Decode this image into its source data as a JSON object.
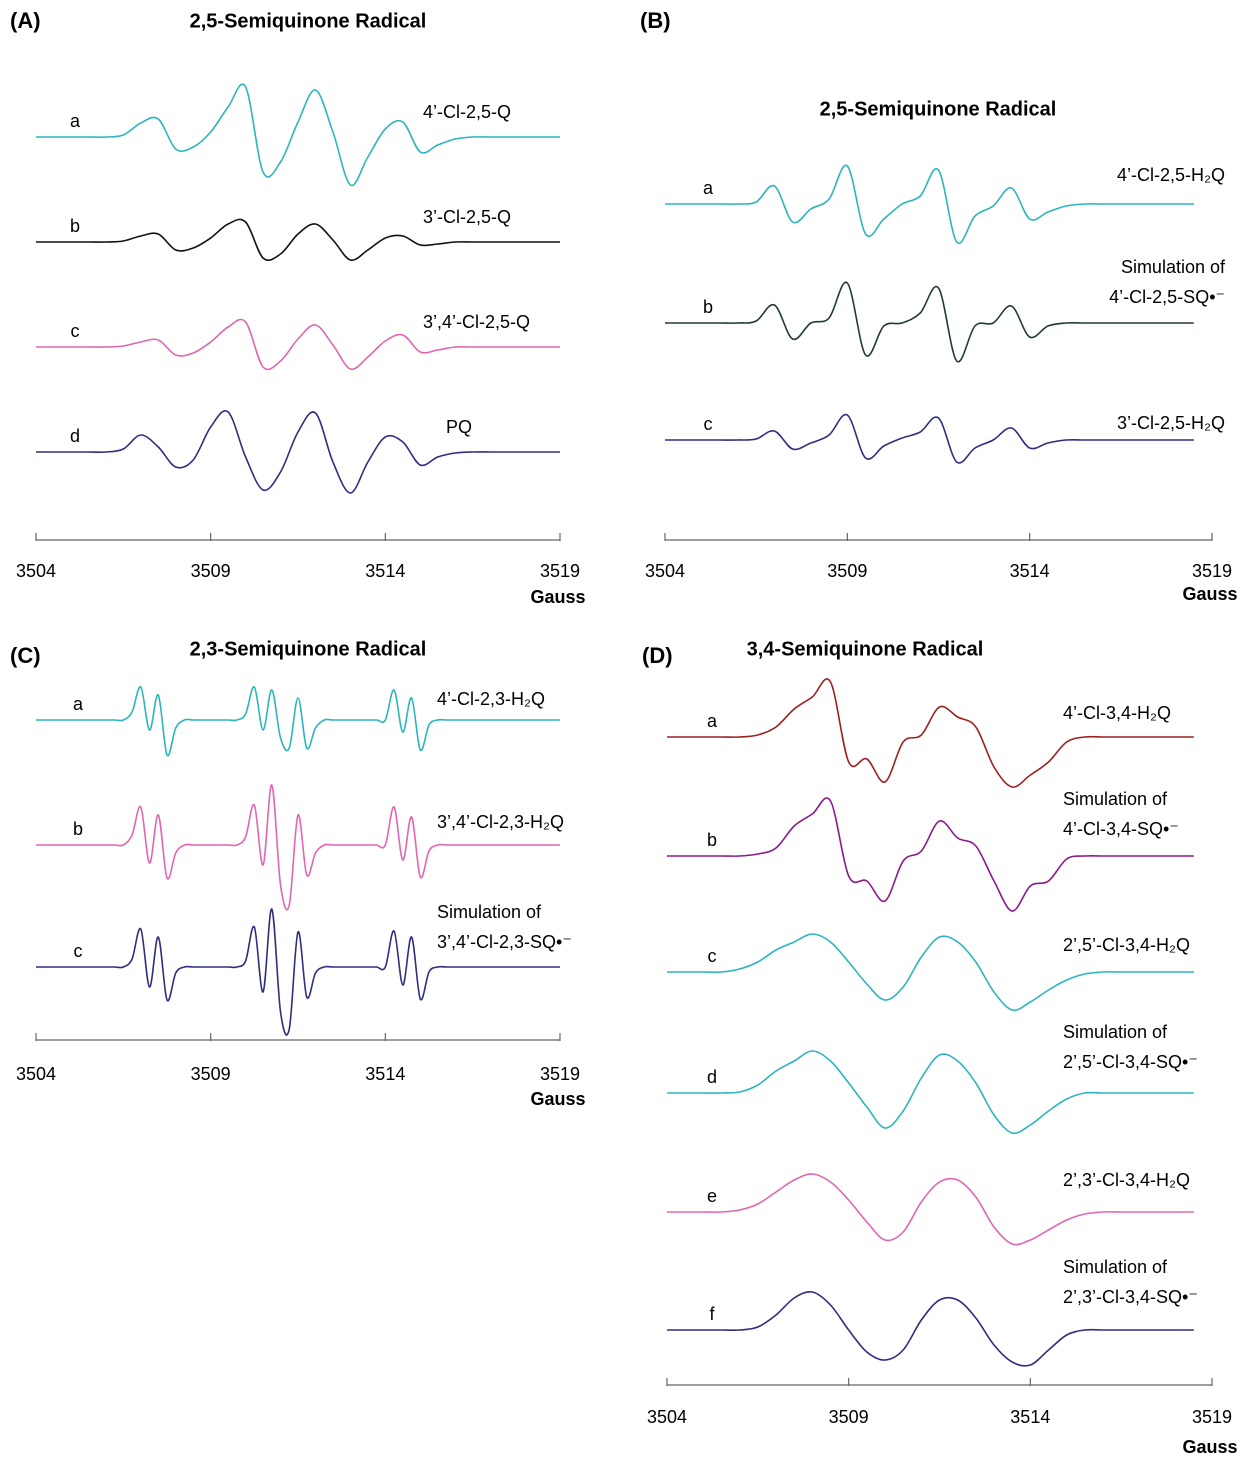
{
  "chart_data": [
    {
      "type": "line",
      "label": "(A)",
      "title": "2,5-Semiquinone Radical",
      "xlabel": "Gauss",
      "xlim": [
        3504,
        3519
      ],
      "xticks": [
        3504,
        3509,
        3514,
        3519
      ],
      "x": [
        3504,
        3504.5,
        3505,
        3505.5,
        3506,
        3506.5,
        3507,
        3507.5,
        3508,
        3508.5,
        3509,
        3509.5,
        3510,
        3510.5,
        3511,
        3511.5,
        3512,
        3512.5,
        3513,
        3513.5,
        3514,
        3514.5,
        3515,
        3515.5,
        3516,
        3516.5,
        3517,
        3517.5,
        3518,
        3518.5,
        3519
      ],
      "series": [
        {
          "tag": "a",
          "name": "4’-Cl-2,5-Q",
          "color": "#2bb5be",
          "values": [
            0,
            0,
            0,
            0,
            0,
            2,
            14,
            18,
            -12,
            -10,
            5,
            30,
            50,
            -35,
            -25,
            15,
            47,
            5,
            -48,
            -20,
            8,
            15,
            -15,
            -8,
            -2,
            0,
            0,
            0,
            0,
            0,
            0
          ]
        },
        {
          "tag": "b",
          "name": "3’-Cl-2,5-Q",
          "color": "#111111",
          "values": [
            0,
            0,
            0,
            0,
            0,
            1,
            6,
            8,
            -8,
            -6,
            4,
            18,
            20,
            -16,
            -12,
            8,
            18,
            2,
            -18,
            -8,
            4,
            6,
            -3,
            -2,
            0,
            0,
            0,
            0,
            0,
            0,
            0
          ]
        },
        {
          "tag": "c",
          "name": "3’,4’-Cl-2,5-Q",
          "color": "#e066b0",
          "values": [
            0,
            0,
            0,
            0,
            0,
            1,
            5,
            7,
            -8,
            -6,
            5,
            20,
            25,
            -20,
            -14,
            8,
            22,
            2,
            -22,
            -10,
            6,
            12,
            -5,
            -3,
            0,
            0,
            0,
            0,
            0,
            0,
            0
          ]
        },
        {
          "tag": "d",
          "name": "PQ",
          "color": "#2e2e80",
          "values": [
            0,
            0,
            0,
            0,
            0,
            3,
            17,
            5,
            -15,
            -8,
            25,
            40,
            -5,
            -38,
            -20,
            20,
            39,
            -10,
            -41,
            -10,
            15,
            10,
            -13,
            -5,
            -1,
            0,
            0,
            0,
            0,
            0,
            0
          ]
        }
      ]
    },
    {
      "type": "line",
      "label": "(B)",
      "title": "2,5-Semiquinone Radical",
      "xlabel": "Gauss",
      "xlim": [
        3504,
        3519
      ],
      "xticks": [
        3504,
        3509,
        3514,
        3519
      ],
      "x": [
        3504,
        3504.5,
        3505,
        3505.5,
        3506,
        3506.5,
        3507,
        3507.5,
        3508,
        3508.5,
        3509,
        3509.5,
        3510,
        3510.5,
        3511,
        3511.5,
        3512,
        3512.5,
        3513,
        3513.5,
        3514,
        3514.5,
        3515,
        3515.5,
        3516,
        3516.5,
        3517,
        3517.5,
        3518,
        3518.5
      ],
      "series": [
        {
          "tag": "a",
          "name": "4’-Cl-2,5-H₂Q",
          "color": "#2bb5be",
          "values": [
            0,
            0,
            0,
            0,
            0,
            2,
            18,
            -18,
            -5,
            5,
            38,
            -30,
            -15,
            0,
            8,
            34,
            -38,
            -12,
            -2,
            16,
            -15,
            -8,
            -2,
            0,
            0,
            0,
            0,
            0,
            0,
            0
          ]
        },
        {
          "tag": "b",
          "name": [
            "Simulation of",
            "4’-Cl-2,5-SQ•⁻"
          ],
          "color": "#1f3d2a",
          "values": [
            0,
            0,
            0,
            0,
            0,
            2,
            18,
            -16,
            0,
            5,
            40,
            -32,
            -3,
            0,
            10,
            35,
            -38,
            -3,
            0,
            17,
            -14,
            -3,
            0,
            0,
            0,
            0,
            0,
            0,
            0,
            0
          ]
        },
        {
          "tag": "c",
          "name": "3’-Cl-2,5-H₂Q",
          "color": "#2e2e80",
          "values": [
            0,
            0,
            0,
            0,
            0,
            1,
            9,
            -9,
            -3,
            5,
            25,
            -18,
            -6,
            2,
            8,
            22,
            -22,
            -8,
            0,
            12,
            -8,
            -3,
            0,
            0,
            0,
            0,
            0,
            0,
            0,
            0
          ]
        }
      ]
    },
    {
      "type": "line",
      "label": "(C)",
      "title": "2,3-Semiquinone Radical",
      "xlabel": "Gauss",
      "xlim": [
        3504,
        3519
      ],
      "xticks": [
        3504,
        3509,
        3514,
        3519
      ],
      "x": [
        3504,
        3504.25,
        3504.5,
        3504.75,
        3505,
        3505.25,
        3505.5,
        3505.75,
        3506,
        3506.25,
        3506.5,
        3506.75,
        3507,
        3507.25,
        3507.5,
        3507.75,
        3508,
        3508.25,
        3508.5,
        3508.75,
        3509,
        3509.25,
        3509.5,
        3509.75,
        3510,
        3510.25,
        3510.5,
        3510.75,
        3511,
        3511.25,
        3511.5,
        3511.75,
        3512,
        3512.25,
        3512.5,
        3512.75,
        3513,
        3513.25,
        3513.5,
        3513.75,
        3514,
        3514.25,
        3514.5,
        3514.75,
        3515,
        3515.25,
        3515.5,
        3515.75,
        3516,
        3516.25,
        3516.5,
        3516.75,
        3517,
        3517.25,
        3517.5,
        3517.75,
        3518,
        3518.25,
        3518.5,
        3518.75,
        3519
      ],
      "series": [
        {
          "tag": "a",
          "name": "4’-Cl-2,3-H₂Q",
          "color": "#2bb5be",
          "values": [
            0,
            0,
            0,
            0,
            0,
            0,
            0,
            0,
            0,
            0,
            0,
            8,
            33,
            -10,
            25,
            -35,
            -8,
            0,
            0,
            0,
            0,
            0,
            0,
            0,
            6,
            33,
            -10,
            30,
            -18,
            -28,
            22,
            -28,
            -8,
            0,
            0,
            0,
            0,
            0,
            0,
            0,
            0,
            30,
            -12,
            22,
            -30,
            -5,
            0,
            0,
            0,
            0,
            0,
            0,
            0,
            0,
            0,
            0,
            0,
            0,
            0,
            0,
            0
          ]
        },
        {
          "tag": "b",
          "name": "3’,4’-Cl-2,3-H₂Q",
          "color": "#e066b0",
          "values": [
            0,
            0,
            0,
            0,
            0,
            0,
            0,
            0,
            0,
            0,
            0,
            10,
            38,
            -18,
            30,
            -33,
            -8,
            0,
            0,
            0,
            0,
            0,
            0,
            0,
            8,
            40,
            -20,
            60,
            -40,
            -60,
            30,
            -30,
            -8,
            0,
            0,
            0,
            0,
            0,
            0,
            0,
            0,
            38,
            -15,
            28,
            -32,
            -6,
            0,
            0,
            0,
            0,
            0,
            0,
            0,
            0,
            0,
            0,
            0,
            0,
            0,
            0,
            0
          ]
        },
        {
          "tag": "c",
          "name": [
            "Simulation of",
            "3’,4’-Cl-2,3-SQ•⁻"
          ],
          "color": "#2e2e80",
          "values": [
            0,
            0,
            0,
            0,
            0,
            0,
            0,
            0,
            0,
            0,
            0,
            8,
            38,
            -20,
            30,
            -33,
            -6,
            0,
            0,
            0,
            0,
            0,
            0,
            0,
            6,
            40,
            -25,
            58,
            -45,
            -62,
            35,
            -30,
            -6,
            0,
            0,
            0,
            0,
            0,
            0,
            0,
            0,
            36,
            -18,
            30,
            -32,
            -5,
            0,
            0,
            0,
            0,
            0,
            0,
            0,
            0,
            0,
            0,
            0,
            0,
            0,
            0,
            0
          ]
        }
      ]
    },
    {
      "type": "line",
      "label": "(D)",
      "title": "3,4-Semiquinone Radical",
      "xlabel": "Gauss",
      "xlim": [
        3504,
        3519
      ],
      "xticks": [
        3504,
        3509,
        3514,
        3519
      ],
      "x": [
        3504,
        3504.5,
        3505,
        3505.5,
        3506,
        3506.5,
        3507,
        3507.5,
        3508,
        3508.5,
        3509,
        3509.5,
        3510,
        3510.5,
        3511,
        3511.5,
        3512,
        3512.5,
        3513,
        3513.5,
        3514,
        3514.5,
        3515,
        3515.5,
        3516,
        3516.5,
        3517,
        3517.5,
        3518,
        3518.5
      ],
      "series": [
        {
          "tag": "a",
          "name": "4’-Cl-3,4-H₂Q",
          "color": "#9b2020",
          "values": [
            0,
            0,
            0,
            0,
            0,
            2,
            10,
            28,
            40,
            55,
            -25,
            -22,
            -45,
            -5,
            2,
            30,
            20,
            10,
            -30,
            -50,
            -38,
            -25,
            -5,
            0,
            0,
            0,
            0,
            0,
            0,
            0
          ]
        },
        {
          "tag": "b",
          "name": [
            "Simulation of",
            "4’-Cl-3,4-SQ•⁻"
          ],
          "color": "#8b1a8b",
          "values": [
            0,
            0,
            0,
            0,
            0,
            2,
            8,
            30,
            42,
            55,
            -20,
            -25,
            -45,
            -5,
            5,
            35,
            18,
            10,
            -25,
            -55,
            -30,
            -25,
            -3,
            0,
            0,
            0,
            0,
            0,
            0,
            0
          ]
        },
        {
          "tag": "c",
          "name": "2’,5’-Cl-3,4-H₂Q",
          "color": "#2bb5be",
          "values": [
            0,
            0,
            0,
            0,
            3,
            10,
            22,
            30,
            38,
            30,
            10,
            -12,
            -28,
            -15,
            15,
            35,
            30,
            10,
            -20,
            -38,
            -30,
            -18,
            -8,
            -2,
            0,
            0,
            0,
            0,
            0,
            0
          ]
        },
        {
          "tag": "d",
          "name": [
            "Simulation of",
            "2’,5’-Cl-3,4-SQ•⁻"
          ],
          "color": "#2bb5be",
          "values": [
            0,
            0,
            0,
            0,
            1,
            8,
            22,
            32,
            42,
            32,
            10,
            -14,
            -35,
            -18,
            15,
            38,
            32,
            10,
            -22,
            -40,
            -32,
            -18,
            -6,
            0,
            0,
            0,
            0,
            0,
            0,
            0
          ]
        },
        {
          "tag": "e",
          "name": "2’,3’-Cl-3,4-H₂Q",
          "color": "#e066b0",
          "values": [
            0,
            0,
            0,
            0,
            2,
            8,
            20,
            32,
            38,
            30,
            12,
            -10,
            -28,
            -20,
            10,
            30,
            32,
            15,
            -15,
            -32,
            -28,
            -18,
            -8,
            -2,
            0,
            0,
            0,
            0,
            0,
            0
          ]
        },
        {
          "tag": "f",
          "name": [
            "Simulation of",
            "2’,3’-Cl-3,4-SQ•⁻"
          ],
          "color": "#2e2e80",
          "values": [
            0,
            0,
            0,
            0,
            0,
            3,
            15,
            32,
            38,
            25,
            0,
            -22,
            -30,
            -20,
            10,
            30,
            30,
            12,
            -15,
            -32,
            -35,
            -20,
            -5,
            0,
            0,
            0,
            0,
            0,
            0,
            0
          ]
        }
      ]
    }
  ]
}
